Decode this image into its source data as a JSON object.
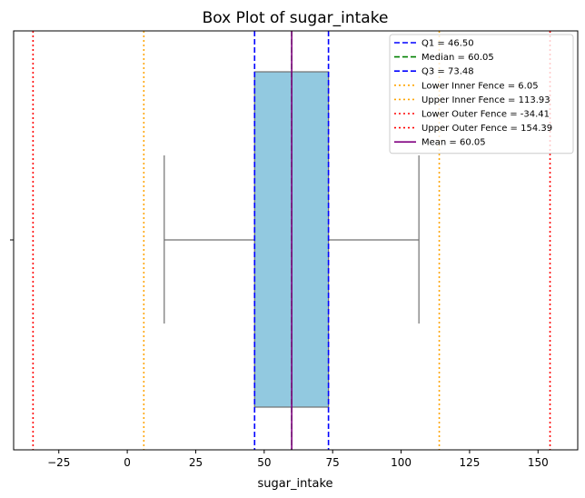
{
  "chart_data": {
    "type": "box",
    "title": "Box Plot of sugar_intake",
    "xlabel": "sugar_intake",
    "ylabel": "",
    "xlim": [
      -41.5,
      164.5
    ],
    "xticks": [
      -25,
      0,
      25,
      50,
      75,
      100,
      125,
      150
    ],
    "xtick_labels": [
      "−25",
      "0",
      "25",
      "50",
      "75",
      "100",
      "125",
      "150"
    ],
    "box": {
      "whisker_low": 13.5,
      "q1": 46.5,
      "median": 60.05,
      "q3": 73.48,
      "whisker_high": 106.5,
      "fill_color": "#92c9e0",
      "edge_color": "#707070"
    },
    "reference_lines": [
      {
        "label": "Q1 = 46.50",
        "value": 46.5,
        "color": "#0000ff",
        "style": "dashed"
      },
      {
        "label": "Median = 60.05",
        "value": 60.05,
        "color": "#008000",
        "style": "dashed"
      },
      {
        "label": "Q3 = 73.48",
        "value": 73.48,
        "color": "#0000ff",
        "style": "dashed"
      },
      {
        "label": "Lower Inner Fence = 6.05",
        "value": 6.05,
        "color": "#ffa500",
        "style": "dotted"
      },
      {
        "label": "Upper Inner Fence = 113.93",
        "value": 113.93,
        "color": "#ffa500",
        "style": "dotted"
      },
      {
        "label": "Lower Outer Fence = -34.41",
        "value": -34.41,
        "color": "#ff0000",
        "style": "dotted"
      },
      {
        "label": "Upper Outer Fence = 154.39",
        "value": 154.39,
        "color": "#ff0000",
        "style": "dotted"
      },
      {
        "label": "Mean = 60.05",
        "value": 60.05,
        "color": "#800080",
        "style": "solid"
      }
    ],
    "legend_position": "top-right",
    "grid": false
  }
}
